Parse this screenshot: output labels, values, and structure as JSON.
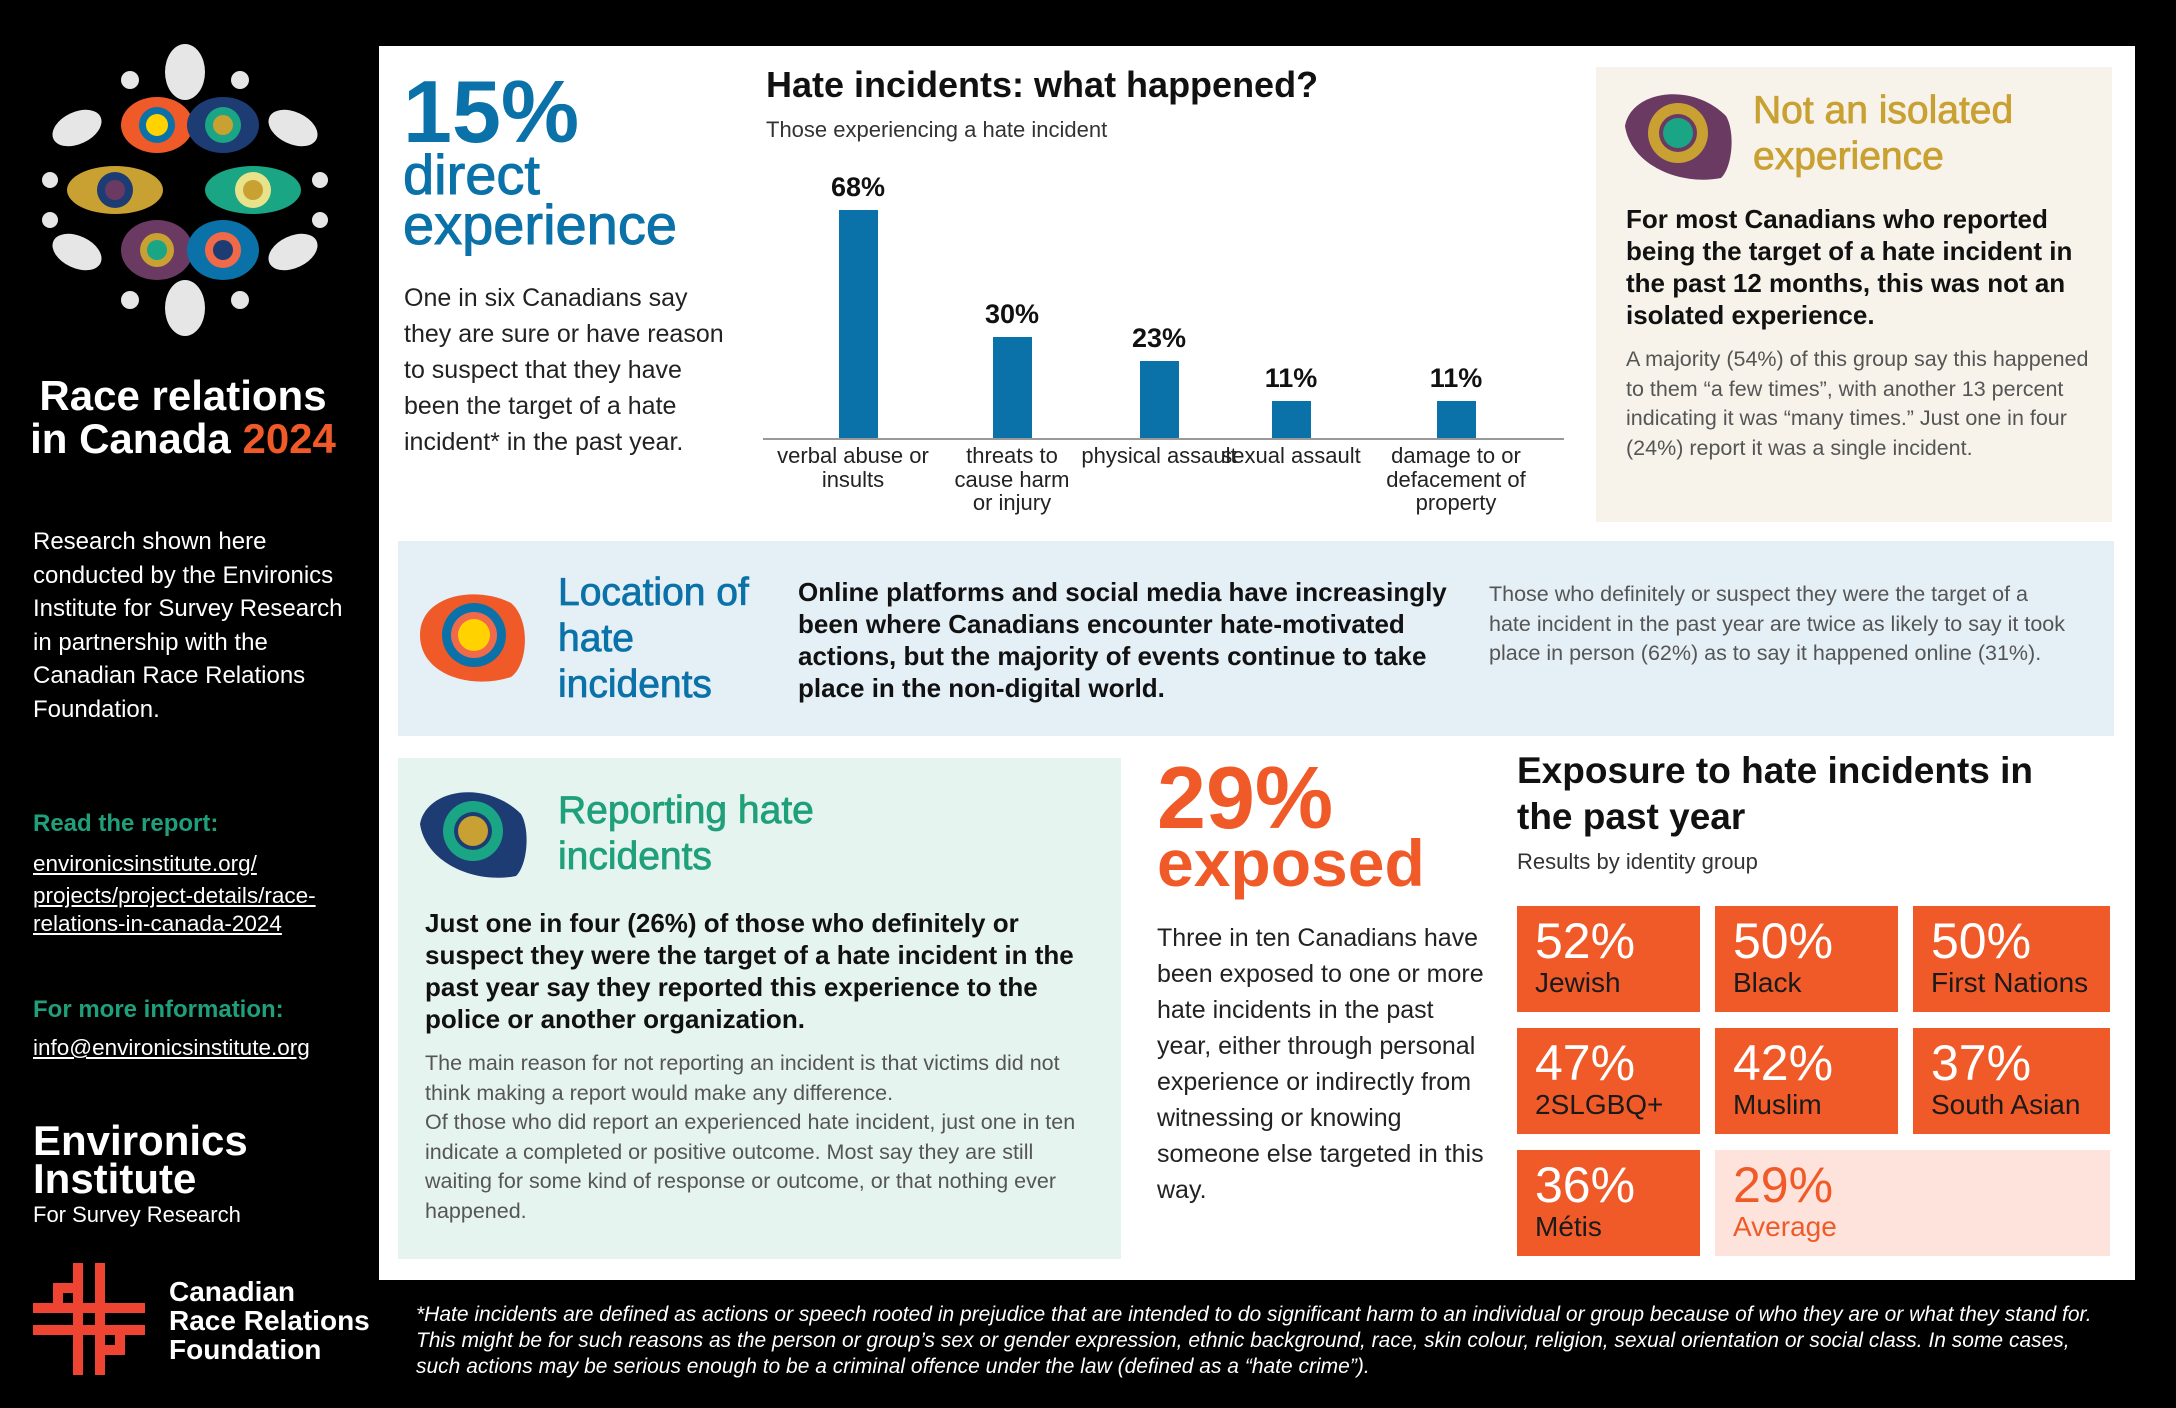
{
  "sidebar": {
    "title_line1": "Race relations",
    "title_line2": "in Canada",
    "title_year": "2024",
    "body": "Research shown here conducted by the Environics Institute for Survey Research in partnership with the Canadian Race Relations Foundation.",
    "read_heading": "Read the report:",
    "report_link_lines": [
      "environicsinstitute.org/",
      "projects/project-details/race-",
      "relations-in-canada-2024"
    ],
    "info_heading": "For more information:",
    "email": "info@environicsinstitute.org",
    "environics_logo": {
      "line1": "Environics",
      "line2": "Institute",
      "line3": "For Survey Research"
    },
    "crrf_logo": {
      "line1": "Canadian",
      "line2": "Race Relations",
      "line3": "Foundation"
    }
  },
  "direct": {
    "stat": "15%",
    "line1": "direct",
    "line2": "experience",
    "body": "One in six Canadians say they are sure or have reason to suspect that they have been the target of a hate incident* in the past year."
  },
  "chart_data": {
    "type": "bar",
    "title": "Hate incidents: what happened?",
    "subtitle": "Those experiencing a hate incident",
    "categories": [
      "verbal abuse or insults",
      "threats to cause harm or injury",
      "physical assault",
      "sexual assault",
      "damage to or defacement of property"
    ],
    "values": [
      68,
      30,
      23,
      11,
      11
    ],
    "labels": [
      "68%",
      "30%",
      "23%",
      "11%",
      "11%"
    ],
    "ylim": [
      0,
      68
    ],
    "grid": false,
    "color": "#0a72a8"
  },
  "isolated": {
    "title": "Not an isolated experience",
    "lead": "For most Canadians who reported being the target of a hate incident in the past 12 months, this was not an isolated experience.",
    "body": "A majority (54%) of this group say this happened to them “a few times”, with another 13 percent indicating it was “many times.” Just one in four (24%) report it was a single incident."
  },
  "location": {
    "title": "Location of hate incidents",
    "lead": "Online platforms and social media have increasingly been where Canadians encounter hate-motivated actions, but the majority of events continue to take place in the non-digital world.",
    "body": "Those who definitely or suspect they were the target of a hate incident in the past year are twice as likely to say it took place in person (62%) as to say it happened online (31%)."
  },
  "reporting": {
    "title": "Reporting hate incidents",
    "lead": "Just one in four (26%) of those who definitely or suspect they were the target of a hate incident in the past year say they reported this experience to the police or another organization.",
    "body1": "The main reason for not reporting an incident is that victims did not think making a report would make any difference.",
    "body2": "Of those who did report an experienced hate incident, just one in ten indicate a completed or positive outcome. Most say they are still waiting for some kind of response or outcome, or that nothing ever happened."
  },
  "exposed": {
    "stat": "29%",
    "label": "exposed",
    "body": "Three in ten Canadians have been exposed to one or more hate incidents in the past year, either through personal experience or indirectly from witnessing or knowing someone else targeted in this way."
  },
  "exposure": {
    "title": "Exposure to hate incidents in the past year",
    "subtitle": "Results by identity group",
    "tiles": [
      {
        "pct": "52%",
        "group": "Jewish"
      },
      {
        "pct": "50%",
        "group": "Black"
      },
      {
        "pct": "50%",
        "group": "First Nations"
      },
      {
        "pct": "47%",
        "group": "2SLGBQ+"
      },
      {
        "pct": "42%",
        "group": "Muslim"
      },
      {
        "pct": "37%",
        "group": "South Asian"
      },
      {
        "pct": "36%",
        "group": "Métis"
      },
      {
        "pct": "29%",
        "group": "Average"
      }
    ]
  },
  "footnote": "*Hate incidents are defined as actions or speech rooted in prejudice that are intended to do significant harm to an individual or group because of who they are or what they stand for. This might be for such reasons as the person or group’s sex or gender expression, ethnic background, race, skin colour, religion, sexual orientation or social class. In some cases, such actions may be serious enough to be a criminal offence under the law (defined as a “hate crime”).",
  "colors": {
    "blue": "#0a72a8",
    "orange": "#f05a28",
    "green": "#1fa07a",
    "gold": "#c9a032",
    "purple": "#6b3a63",
    "beige": "#f7f3ea",
    "lightblue": "#e4eff6",
    "mint": "#e5f4ef"
  }
}
